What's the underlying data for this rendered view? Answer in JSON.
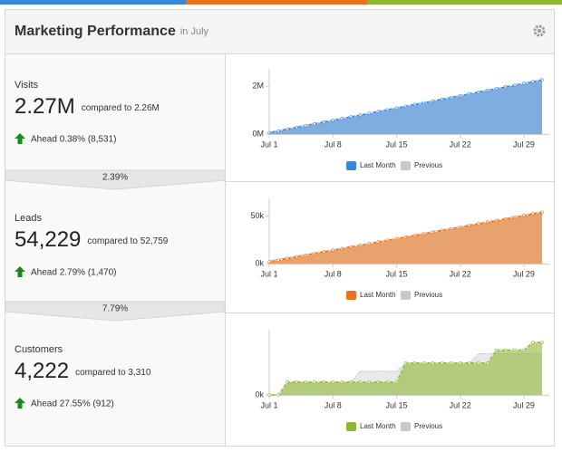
{
  "panel": {
    "title": "Marketing Performance",
    "subtitle": "in July"
  },
  "metrics": [
    {
      "label": "Visits",
      "value": "2.27M",
      "comparison": "compared to 2.26M",
      "change": "Ahead 0.38% (8,531)"
    },
    {
      "label": "Leads",
      "value": "54,229",
      "comparison": "compared to 52,759",
      "change": "Ahead 2.79% (1,470)"
    },
    {
      "label": "Customers",
      "value": "4,222",
      "comparison": "compared to 3,310",
      "change": "Ahead 27.55% (912)"
    }
  ],
  "conversions": [
    "2.39%",
    "7.79%"
  ],
  "chart_data": [
    {
      "type": "area",
      "categories": [
        "Jul 1",
        null,
        null,
        null,
        null,
        null,
        null,
        "Jul 8",
        null,
        null,
        null,
        null,
        null,
        null,
        "Jul 15",
        null,
        null,
        null,
        null,
        null,
        null,
        "Jul 22",
        null,
        null,
        null,
        null,
        null,
        null,
        "Jul 29",
        null,
        null
      ],
      "series": [
        {
          "name": "Last Month",
          "color": "#3a86d8",
          "values": [
            60000,
            134000,
            207000,
            281000,
            354000,
            428000,
            502000,
            575000,
            649000,
            722000,
            796000,
            870000,
            943000,
            1017000,
            1090000,
            1164000,
            1238000,
            1311000,
            1385000,
            1458000,
            1532000,
            1606000,
            1679000,
            1753000,
            1826000,
            1900000,
            1974000,
            2047000,
            2121000,
            2194000,
            2270000
          ]
        },
        {
          "name": "Previous",
          "color": "#c8c8c8",
          "values": [
            80000,
            153000,
            225000,
            298000,
            371000,
            444000,
            516000,
            589000,
            662000,
            734000,
            807000,
            880000,
            952000,
            1025000,
            1098000,
            1170000,
            1243000,
            1316000,
            1388000,
            1461000,
            1534000,
            1606000,
            1679000,
            1752000,
            1824000,
            1897000,
            1970000,
            2042000,
            2115000,
            2188000,
            2260000
          ]
        }
      ],
      "ylim": [
        0,
        2500000
      ],
      "yticks": [
        {
          "value": 0,
          "label": "0M"
        },
        {
          "value": 2000000,
          "label": "2M"
        }
      ]
    },
    {
      "type": "area",
      "categories": [
        "Jul 1",
        null,
        null,
        null,
        null,
        null,
        null,
        "Jul 8",
        null,
        null,
        null,
        null,
        null,
        null,
        "Jul 15",
        null,
        null,
        null,
        null,
        null,
        null,
        "Jul 22",
        null,
        null,
        null,
        null,
        null,
        null,
        "Jul 29",
        null,
        null
      ],
      "series": [
        {
          "name": "Last Month",
          "color": "#e8731c",
          "values": [
            2000,
            3700,
            5500,
            7200,
            9000,
            10700,
            12400,
            14200,
            15900,
            17700,
            19400,
            21100,
            22900,
            24600,
            26400,
            28100,
            29800,
            31600,
            33300,
            35100,
            36800,
            38500,
            40300,
            42000,
            43800,
            45500,
            47200,
            49000,
            50700,
            52500,
            54229
          ]
        },
        {
          "name": "Previous",
          "color": "#c8c8c8",
          "values": [
            3000,
            4700,
            6300,
            8000,
            9600,
            11300,
            13000,
            14600,
            16300,
            17900,
            19600,
            21300,
            22900,
            24600,
            26200,
            27900,
            29600,
            31200,
            32900,
            34500,
            36200,
            37900,
            39500,
            41200,
            42800,
            44500,
            46200,
            47800,
            49500,
            51100,
            52759
          ]
        }
      ],
      "ylim": [
        0,
        63000
      ],
      "yticks": [
        {
          "value": 0,
          "label": "0k"
        },
        {
          "value": 50000,
          "label": "50k"
        }
      ]
    },
    {
      "type": "area",
      "categories": [
        "Jul 1",
        null,
        null,
        null,
        null,
        null,
        null,
        "Jul 8",
        null,
        null,
        null,
        null,
        null,
        null,
        "Jul 15",
        null,
        null,
        null,
        null,
        null,
        null,
        "Jul 22",
        null,
        null,
        null,
        null,
        null,
        null,
        "Jul 29",
        null,
        null
      ],
      "series": [
        {
          "name": "Last Month",
          "color": "#8db833",
          "values": [
            0,
            0,
            1040,
            1040,
            1040,
            1040,
            1040,
            1040,
            1040,
            1040,
            1040,
            1040,
            1040,
            1040,
            1040,
            2560,
            2560,
            2560,
            2560,
            2560,
            2560,
            2560,
            2560,
            2560,
            2560,
            3600,
            3600,
            3600,
            3600,
            4222,
            4222
          ]
        },
        {
          "name": "Previous",
          "color": "#c8c8c8",
          "values": [
            0,
            0,
            1040,
            1040,
            1040,
            1040,
            1040,
            1040,
            1040,
            1040,
            1900,
            1900,
            1900,
            1900,
            1900,
            2560,
            2560,
            2560,
            2560,
            2560,
            2560,
            2560,
            2560,
            3310,
            3310,
            3310,
            3310,
            3310,
            3310,
            3310,
            3310
          ]
        }
      ],
      "ylim": [
        0,
        4800
      ],
      "yticks": [
        {
          "value": 0,
          "label": "0k"
        }
      ]
    }
  ]
}
